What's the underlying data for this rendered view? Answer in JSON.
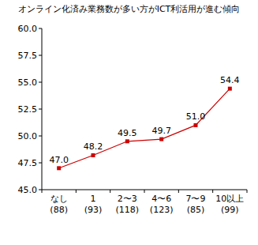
{
  "chart_data": {
    "type": "line",
    "title": "オンライン化済み業務数が多い方がICT利活用が進む傾向",
    "categories": [
      "なし\n(88)",
      "1\n(93)",
      "2〜3\n(118)",
      "4〜6\n(123)",
      "7〜9\n(85)",
      "10以上\n(99)"
    ],
    "values": [
      47.0,
      48.2,
      49.5,
      49.7,
      51.0,
      54.4
    ],
    "value_labels": [
      "47.0",
      "48.2",
      "49.5",
      "49.7",
      "51.0",
      "54.4"
    ],
    "color": "#cc0000",
    "marker": "square",
    "data_labels": true,
    "grid": false,
    "ylim": [
      45,
      60
    ],
    "yticks": [
      {
        "value": 45,
        "label": "45.0"
      },
      {
        "value": 47.5,
        "label": "47.5"
      },
      {
        "value": 50,
        "label": "50.0"
      },
      {
        "value": 52.5,
        "label": "52.5"
      },
      {
        "value": 55,
        "label": "55.0"
      },
      {
        "value": 57.5,
        "label": "57.5"
      },
      {
        "value": 60,
        "label": "60.0"
      }
    ]
  }
}
